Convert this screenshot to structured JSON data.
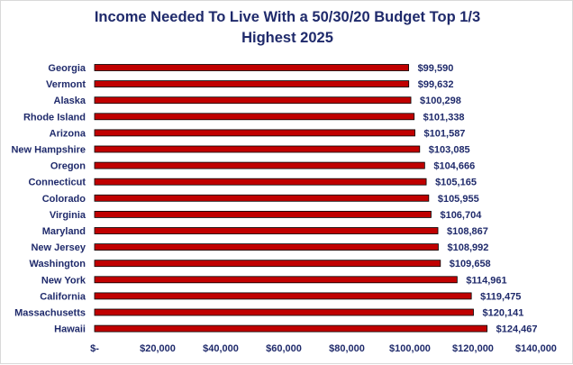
{
  "chart_data": {
    "type": "bar",
    "orientation": "horizontal",
    "title_lines": [
      "Income Needed To Live With a 50/30/20 Budget Top 1/3",
      "Highest 2025"
    ],
    "categories": [
      "Georgia",
      "Vermont",
      "Alaska",
      "Rhode Island",
      "Arizona",
      "New Hampshire",
      "Oregon",
      "Connecticut",
      "Colorado",
      "Virginia",
      "Maryland",
      "New Jersey",
      "Washington",
      "New York",
      "California",
      "Massachusetts",
      "Hawaii"
    ],
    "values": [
      99590,
      99632,
      100298,
      101338,
      101587,
      103085,
      104666,
      105165,
      105955,
      106704,
      108867,
      108992,
      109658,
      114961,
      119475,
      120141,
      124467
    ],
    "value_labels": [
      "$99,590",
      "$99,632",
      "$100,298",
      "$101,338",
      "$101,587",
      "$103,085",
      "$104,666",
      "$105,165",
      "$105,955",
      "$106,704",
      "$108,867",
      "$108,992",
      "$109,658",
      "$114,961",
      "$119,475",
      "$120,141",
      "$124,467"
    ],
    "xlim": [
      0,
      140000
    ],
    "x_ticks": [
      0,
      20000,
      40000,
      60000,
      80000,
      100000,
      120000,
      140000
    ],
    "x_tick_labels": [
      "$-",
      "$20,000",
      "$40,000",
      "$60,000",
      "$80,000",
      "$100,000",
      "$120,000",
      "$140,000"
    ],
    "grid": false,
    "legend": "none",
    "colors": {
      "bar_fill": "#c00000",
      "bar_stroke": "#000000",
      "text": "#1f2a6b",
      "border": "#d9d9d9"
    }
  }
}
